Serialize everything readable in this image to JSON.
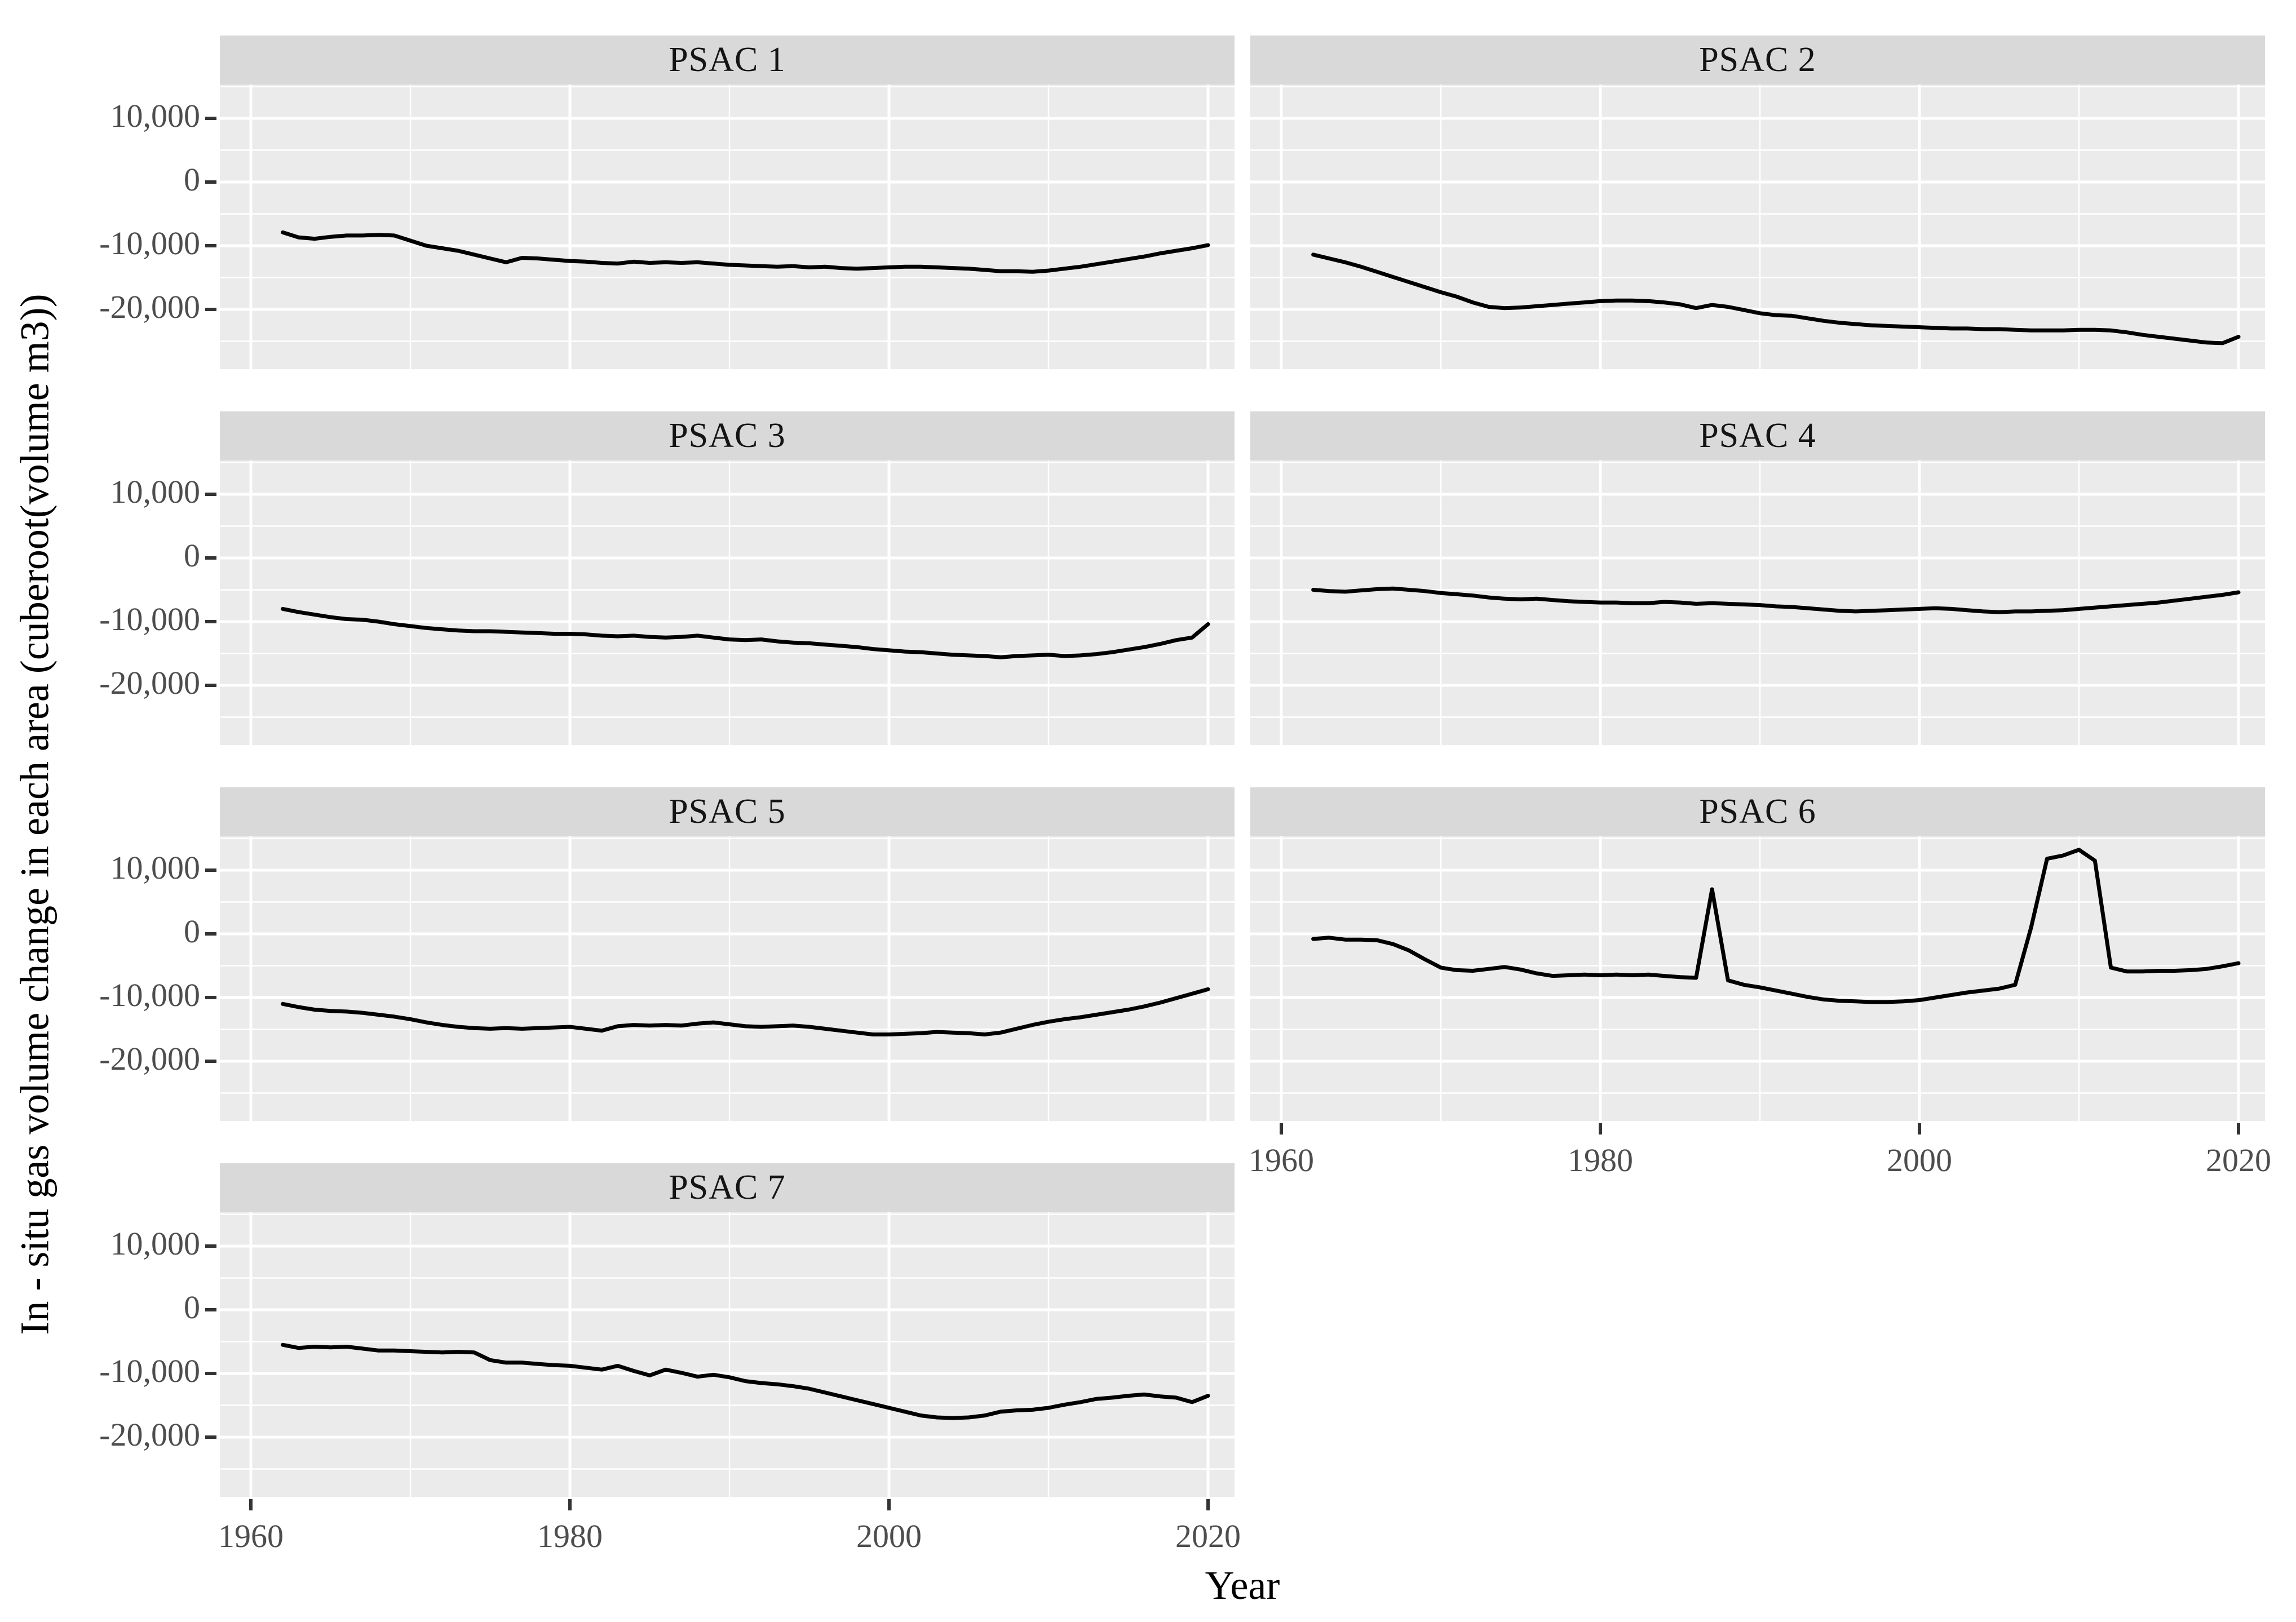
{
  "colors": {
    "strip_bg": "#d9d9d9",
    "panel_bg": "#ebebeb",
    "gridline": "#ffffff",
    "series_line": "#000000",
    "tick_text": "#4d4d4d",
    "axis_title_text": "#000000"
  },
  "chart_data": {
    "type": "line",
    "title": "",
    "xlabel": "Year",
    "ylabel": "In - situ gas volume change in each area (cuberoot(volume m3))",
    "x_tick_labels": [
      "1960",
      "1980",
      "2000",
      "2020"
    ],
    "x_tick_values": [
      1960,
      1980,
      2000,
      2020
    ],
    "x_minor_values": [
      1970,
      1990,
      2010
    ],
    "y_tick_labels": [
      "10,000",
      "0",
      "-10,000",
      "-20,000"
    ],
    "y_tick_values": [
      10000,
      0,
      -10000,
      -20000
    ],
    "y_minor_values": [
      15000,
      5000,
      -5000,
      -15000,
      -25000
    ],
    "ylim": [
      -29380,
      15310
    ],
    "xlim": [
      1958.1,
      2023.3
    ],
    "grid": "white major and minor gridlines on grey panels",
    "legend_position": "none",
    "years": [
      1962,
      1963,
      1964,
      1965,
      1966,
      1967,
      1968,
      1969,
      1970,
      1971,
      1972,
      1973,
      1974,
      1975,
      1976,
      1977,
      1978,
      1979,
      1980,
      1981,
      1982,
      1983,
      1984,
      1985,
      1986,
      1987,
      1988,
      1989,
      1990,
      1991,
      1992,
      1993,
      1994,
      1995,
      1996,
      1997,
      1998,
      1999,
      2000,
      2001,
      2002,
      2003,
      2004,
      2005,
      2006,
      2007,
      2008,
      2009,
      2010,
      2011,
      2012,
      2013,
      2014,
      2015,
      2016,
      2017,
      2018,
      2019,
      2020
    ],
    "facets": [
      {
        "label": "PSAC 1",
        "values": [
          -7900,
          -8700,
          -8900,
          -8600,
          -8400,
          -8400,
          -8300,
          -8400,
          -9200,
          -10000,
          -10400,
          -10800,
          -11400,
          -12000,
          -12600,
          -11900,
          -12000,
          -12200,
          -12400,
          -12500,
          -12700,
          -12800,
          -12500,
          -12700,
          -12600,
          -12700,
          -12600,
          -12800,
          -13000,
          -13100,
          -13200,
          -13300,
          -13200,
          -13400,
          -13300,
          -13500,
          -13600,
          -13500,
          -13400,
          -13300,
          -13300,
          -13400,
          -13500,
          -13600,
          -13800,
          -14000,
          -14000,
          -14100,
          -13900,
          -13600,
          -13300,
          -12900,
          -12500,
          -12100,
          -11700,
          -11200,
          -10800,
          -10400,
          -9900
        ]
      },
      {
        "label": "PSAC 2",
        "values": [
          -11400,
          -12000,
          -12600,
          -13300,
          -14100,
          -14900,
          -15700,
          -16500,
          -17300,
          -18000,
          -18900,
          -19600,
          -19800,
          -19700,
          -19500,
          -19300,
          -19100,
          -18900,
          -18700,
          -18600,
          -18600,
          -18700,
          -18900,
          -19200,
          -19800,
          -19300,
          -19600,
          -20100,
          -20600,
          -20900,
          -21000,
          -21400,
          -21800,
          -22100,
          -22300,
          -22500,
          -22600,
          -22700,
          -22800,
          -22900,
          -23000,
          -23000,
          -23100,
          -23100,
          -23200,
          -23300,
          -23300,
          -23300,
          -23200,
          -23200,
          -23300,
          -23600,
          -24000,
          -24300,
          -24600,
          -24900,
          -25200,
          -25300,
          -24300
        ]
      },
      {
        "label": "PSAC 3",
        "values": [
          -8000,
          -8500,
          -8900,
          -9300,
          -9600,
          -9700,
          -10000,
          -10400,
          -10700,
          -11000,
          -11200,
          -11400,
          -11500,
          -11500,
          -11600,
          -11700,
          -11800,
          -11900,
          -11900,
          -12000,
          -12200,
          -12300,
          -12200,
          -12400,
          -12500,
          -12400,
          -12200,
          -12500,
          -12800,
          -12900,
          -12800,
          -13100,
          -13300,
          -13400,
          -13600,
          -13800,
          -14000,
          -14300,
          -14500,
          -14700,
          -14800,
          -15000,
          -15200,
          -15300,
          -15400,
          -15600,
          -15400,
          -15300,
          -15200,
          -15400,
          -15300,
          -15100,
          -14800,
          -14400,
          -14000,
          -13500,
          -12900,
          -12500,
          -10400
        ]
      },
      {
        "label": "PSAC 4",
        "values": [
          -5000,
          -5200,
          -5300,
          -5100,
          -4900,
          -4800,
          -5000,
          -5200,
          -5500,
          -5700,
          -5900,
          -6200,
          -6400,
          -6500,
          -6400,
          -6600,
          -6800,
          -6900,
          -7000,
          -7000,
          -7100,
          -7100,
          -6900,
          -7000,
          -7200,
          -7100,
          -7200,
          -7300,
          -7400,
          -7600,
          -7700,
          -7900,
          -8100,
          -8300,
          -8400,
          -8300,
          -8200,
          -8100,
          -8000,
          -7900,
          -8000,
          -8200,
          -8400,
          -8500,
          -8400,
          -8400,
          -8300,
          -8200,
          -8000,
          -7800,
          -7600,
          -7400,
          -7200,
          -7000,
          -6700,
          -6400,
          -6100,
          -5800,
          -5400
        ]
      },
      {
        "label": "PSAC 5",
        "values": [
          -11000,
          -11500,
          -11900,
          -12100,
          -12200,
          -12400,
          -12700,
          -13000,
          -13400,
          -13900,
          -14300,
          -14600,
          -14800,
          -14900,
          -14800,
          -14900,
          -14800,
          -14700,
          -14600,
          -14900,
          -15200,
          -14500,
          -14300,
          -14400,
          -14300,
          -14400,
          -14100,
          -13900,
          -14200,
          -14500,
          -14600,
          -14500,
          -14400,
          -14600,
          -14900,
          -15200,
          -15500,
          -15800,
          -15800,
          -15700,
          -15600,
          -15400,
          -15500,
          -15600,
          -15800,
          -15500,
          -14900,
          -14300,
          -13800,
          -13400,
          -13100,
          -12700,
          -12300,
          -11900,
          -11400,
          -10800,
          -10100,
          -9400,
          -8700
        ]
      },
      {
        "label": "PSAC 6",
        "values": [
          -800,
          -600,
          -900,
          -900,
          -1000,
          -1600,
          -2600,
          -4000,
          -5300,
          -5700,
          -5800,
          -5500,
          -5200,
          -5600,
          -6200,
          -6600,
          -6500,
          -6400,
          -6500,
          -6400,
          -6500,
          -6400,
          -6600,
          -6800,
          -6900,
          7000,
          -7300,
          -8000,
          -8400,
          -8900,
          -9400,
          -9900,
          -10300,
          -10500,
          -10600,
          -10700,
          -10700,
          -10600,
          -10400,
          -10000,
          -9600,
          -9200,
          -8900,
          -8600,
          -8000,
          1000,
          11800,
          12300,
          13200,
          11500,
          -5300,
          -5900,
          -5900,
          -5800,
          -5800,
          -5700,
          -5500,
          -5100,
          -4600
        ]
      },
      {
        "label": "PSAC 7",
        "values": [
          -5500,
          -6000,
          -5800,
          -5900,
          -5800,
          -6100,
          -6400,
          -6400,
          -6500,
          -6600,
          -6700,
          -6600,
          -6700,
          -7900,
          -8300,
          -8300,
          -8500,
          -8700,
          -8800,
          -9100,
          -9400,
          -8800,
          -9600,
          -10300,
          -9400,
          -9900,
          -10500,
          -10200,
          -10600,
          -11200,
          -11500,
          -11700,
          -12000,
          -12400,
          -13000,
          -13600,
          -14200,
          -14800,
          -15400,
          -16000,
          -16600,
          -16900,
          -17000,
          -16900,
          -16600,
          -16000,
          -15800,
          -15700,
          -15400,
          -14900,
          -14500,
          -14000,
          -13800,
          -13500,
          -13300,
          -13600,
          -13800,
          -14500,
          -13500
        ]
      }
    ]
  }
}
